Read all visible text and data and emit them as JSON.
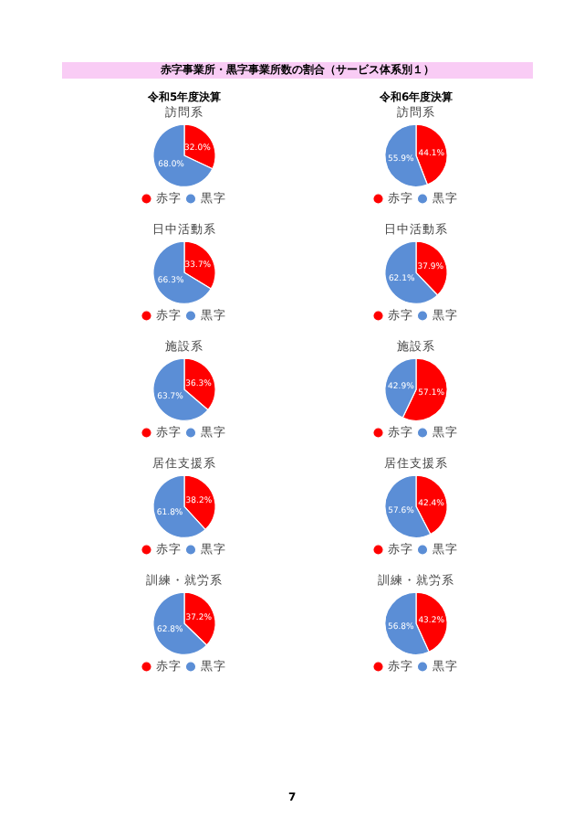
{
  "chart_data": [
    {
      "type": "pie",
      "title": "訪問系",
      "categories": [
        "赤字",
        "黒字"
      ],
      "values": [
        32.0,
        68.0
      ],
      "colors": [
        "#ff0000",
        "#5b8ed6"
      ],
      "value_labels": [
        "32.0%",
        "68.0%"
      ],
      "legend": "bottom",
      "annotations": [
        "赤字事業所・黒字事業所数の割合（サービス体系別１）",
        "令和5年度決算"
      ]
    },
    {
      "type": "pie",
      "title": "訪問系",
      "categories": [
        "赤字",
        "黒字"
      ],
      "values": [
        44.1,
        55.9
      ],
      "colors": [
        "#ff0000",
        "#5b8ed6"
      ],
      "value_labels": [
        "44.1%",
        "55.9%"
      ],
      "legend": "bottom",
      "annotations": [
        "令和6年度決算"
      ]
    },
    {
      "type": "pie",
      "title": "日中活動系",
      "categories": [
        "赤字",
        "黒字"
      ],
      "values": [
        33.7,
        66.3
      ],
      "colors": [
        "#ff0000",
        "#5b8ed6"
      ],
      "value_labels": [
        "33.7%",
        "66.3%"
      ],
      "legend": "bottom"
    },
    {
      "type": "pie",
      "title": "日中活動系",
      "categories": [
        "赤字",
        "黒字"
      ],
      "values": [
        37.9,
        62.1
      ],
      "colors": [
        "#ff0000",
        "#5b8ed6"
      ],
      "value_labels": [
        "37.9%",
        "62.1%"
      ],
      "legend": "bottom"
    },
    {
      "type": "pie",
      "title": "施設系",
      "categories": [
        "赤字",
        "黒字"
      ],
      "values": [
        36.3,
        63.7
      ],
      "colors": [
        "#ff0000",
        "#5b8ed6"
      ],
      "value_labels": [
        "36.3%",
        "63.7%"
      ],
      "legend": "bottom"
    },
    {
      "type": "pie",
      "title": "施設系",
      "categories": [
        "赤字",
        "黒字"
      ],
      "values": [
        57.1,
        42.9
      ],
      "colors": [
        "#ff0000",
        "#5b8ed6"
      ],
      "value_labels": [
        "57.1%",
        "42.9%"
      ],
      "legend": "bottom"
    },
    {
      "type": "pie",
      "title": "居住支援系",
      "categories": [
        "赤字",
        "黒字"
      ],
      "values": [
        38.2,
        61.8
      ],
      "colors": [
        "#ff0000",
        "#5b8ed6"
      ],
      "value_labels": [
        "38.2%",
        "61.8%"
      ],
      "legend": "bottom"
    },
    {
      "type": "pie",
      "title": "居住支援系",
      "categories": [
        "赤字",
        "黒字"
      ],
      "values": [
        42.4,
        57.6
      ],
      "colors": [
        "#ff0000",
        "#5b8ed6"
      ],
      "value_labels": [
        "42.4%",
        "57.6%"
      ],
      "legend": "bottom"
    },
    {
      "type": "pie",
      "title": "訓練・就労系",
      "categories": [
        "赤字",
        "黒字"
      ],
      "values": [
        37.2,
        62.8
      ],
      "colors": [
        "#ff0000",
        "#5b8ed6"
      ],
      "value_labels": [
        "37.2%",
        "62.8%"
      ],
      "legend": "bottom"
    },
    {
      "type": "pie",
      "title": "訓練・就労系",
      "categories": [
        "赤字",
        "黒字"
      ],
      "values": [
        43.2,
        56.8
      ],
      "colors": [
        "#ff0000",
        "#5b8ed6"
      ],
      "value_labels": [
        "43.2%",
        "56.8%"
      ],
      "legend": "bottom",
      "annotations": [
        "7"
      ]
    }
  ]
}
